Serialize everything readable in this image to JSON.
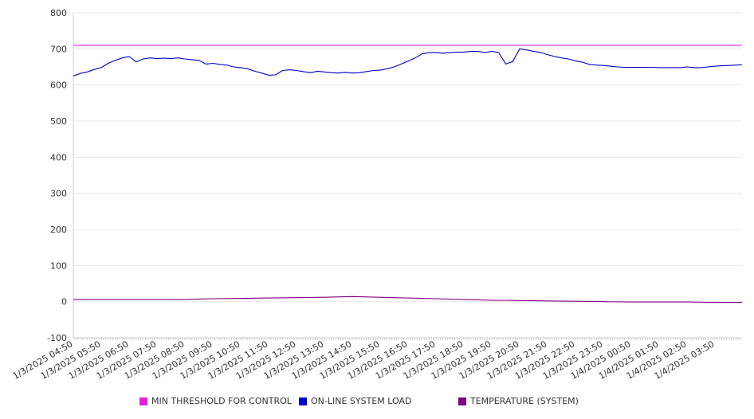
{
  "chart_data": {
    "type": "line",
    "title": "",
    "xlabel": "",
    "ylabel": "",
    "ylim": [
      -100,
      800
    ],
    "yticks": [
      -100,
      0,
      100,
      200,
      300,
      400,
      500,
      600,
      700,
      800
    ],
    "xtick_labels": [
      "1/3/2025 04:50",
      "1/3/2025 05:50",
      "1/3/2025 06:50",
      "1/3/2025 07:50",
      "1/3/2025 08:50",
      "1/3/2025 09:50",
      "1/3/2025 10:50",
      "1/3/2025 11:50",
      "1/3/2025 12:50",
      "1/3/2025 13:50",
      "1/3/2025 14:50",
      "1/3/2025 15:50",
      "1/3/2025 16:50",
      "1/3/2025 17:50",
      "1/3/2025 18:50",
      "1/3/2025 19:50",
      "1/3/2025 20:50",
      "1/3/2025 21:50",
      "1/3/2025 22:50",
      "1/3/2025 23:50",
      "1/4/2025 00:50",
      "1/4/2025 01:50",
      "1/4/2025 02:50",
      "1/4/2025 03:50"
    ],
    "grid": true,
    "legend_position": "bottom",
    "series": [
      {
        "name": "MIN THRESHOLD FOR CONTROL",
        "color": "#e020e0",
        "x": [
          "1/3/2025 04:50",
          "1/4/2025 04:50"
        ],
        "y": [
          710,
          710
        ]
      },
      {
        "name": "ON-LINE SYSTEM LOAD",
        "color": "#0000cc",
        "x": [
          "1/3/2025 04:50",
          "1/3/2025 05:05",
          "1/3/2025 05:20",
          "1/3/2025 05:35",
          "1/3/2025 05:50",
          "1/3/2025 06:05",
          "1/3/2025 06:20",
          "1/3/2025 06:35",
          "1/3/2025 06:50",
          "1/3/2025 07:05",
          "1/3/2025 07:20",
          "1/3/2025 07:35",
          "1/3/2025 07:50",
          "1/3/2025 08:05",
          "1/3/2025 08:20",
          "1/3/2025 08:35",
          "1/3/2025 08:50",
          "1/3/2025 09:05",
          "1/3/2025 09:20",
          "1/3/2025 09:35",
          "1/3/2025 09:50",
          "1/3/2025 10:05",
          "1/3/2025 10:20",
          "1/3/2025 10:35",
          "1/3/2025 10:50",
          "1/3/2025 11:05",
          "1/3/2025 11:20",
          "1/3/2025 11:35",
          "1/3/2025 11:50",
          "1/3/2025 12:05",
          "1/3/2025 12:20",
          "1/3/2025 12:35",
          "1/3/2025 12:50",
          "1/3/2025 13:05",
          "1/3/2025 13:20",
          "1/3/2025 13:35",
          "1/3/2025 13:50",
          "1/3/2025 14:05",
          "1/3/2025 14:20",
          "1/3/2025 14:35",
          "1/3/2025 14:50",
          "1/3/2025 15:05",
          "1/3/2025 15:20",
          "1/3/2025 15:35",
          "1/3/2025 15:50",
          "1/3/2025 16:05",
          "1/3/2025 16:20",
          "1/3/2025 16:35",
          "1/3/2025 16:50",
          "1/3/2025 17:05",
          "1/3/2025 17:20",
          "1/3/2025 17:35",
          "1/3/2025 17:50",
          "1/3/2025 18:05",
          "1/3/2025 18:20",
          "1/3/2025 18:35",
          "1/3/2025 18:50",
          "1/3/2025 19:05",
          "1/3/2025 19:20",
          "1/3/2025 19:35",
          "1/3/2025 19:50",
          "1/3/2025 20:05",
          "1/3/2025 20:20",
          "1/3/2025 20:35",
          "1/3/2025 20:50",
          "1/3/2025 21:05",
          "1/3/2025 21:20",
          "1/3/2025 21:35",
          "1/3/2025 21:50",
          "1/3/2025 22:05",
          "1/3/2025 22:20",
          "1/3/2025 22:35",
          "1/3/2025 22:50",
          "1/3/2025 23:05",
          "1/3/2025 23:20",
          "1/3/2025 23:35",
          "1/3/2025 23:50",
          "1/4/2025 00:05",
          "1/4/2025 00:20",
          "1/4/2025 00:35",
          "1/4/2025 00:50",
          "1/4/2025 01:05",
          "1/4/2025 01:20",
          "1/4/2025 01:35",
          "1/4/2025 01:50",
          "1/4/2025 02:05",
          "1/4/2025 02:20",
          "1/4/2025 02:35",
          "1/4/2025 02:50",
          "1/4/2025 03:05",
          "1/4/2025 03:20",
          "1/4/2025 03:35",
          "1/4/2025 03:50",
          "1/4/2025 04:05",
          "1/4/2025 04:20",
          "1/4/2025 04:35",
          "1/4/2025 04:50"
        ],
        "y": [
          625,
          632,
          636,
          643,
          648,
          660,
          668,
          675,
          679,
          664,
          672,
          675,
          673,
          674,
          673,
          675,
          672,
          670,
          668,
          658,
          660,
          657,
          655,
          650,
          648,
          645,
          638,
          633,
          627,
          628,
          640,
          642,
          640,
          637,
          634,
          638,
          636,
          634,
          633,
          635,
          633,
          634,
          637,
          640,
          641,
          645,
          650,
          658,
          666,
          675,
          686,
          690,
          690,
          688,
          690,
          691,
          691,
          693,
          693,
          690,
          693,
          690,
          658,
          665,
          700,
          697,
          693,
          690,
          684,
          679,
          675,
          672,
          667,
          663,
          657,
          655,
          654,
          652,
          650,
          649,
          649,
          649,
          649,
          649,
          648,
          648,
          648,
          648,
          650,
          648,
          648,
          650,
          652,
          653,
          654,
          655,
          656
        ]
      },
      {
        "name": "TEMPERATURE (SYSTEM)",
        "color": "#800080",
        "x": [
          "1/3/2025 04:50",
          "1/3/2025 06:50",
          "1/3/2025 08:50",
          "1/3/2025 09:50",
          "1/3/2025 10:50",
          "1/3/2025 11:50",
          "1/3/2025 12:50",
          "1/3/2025 13:50",
          "1/3/2025 14:50",
          "1/3/2025 15:50",
          "1/3/2025 16:50",
          "1/3/2025 17:50",
          "1/3/2025 18:50",
          "1/3/2025 19:50",
          "1/3/2025 20:50",
          "1/3/2025 21:50",
          "1/3/2025 22:50",
          "1/3/2025 23:50",
          "1/4/2025 00:50",
          "1/4/2025 01:50",
          "1/4/2025 02:50",
          "1/4/2025 03:50",
          "1/4/2025 04:50"
        ],
        "y": [
          6,
          6,
          6,
          8,
          9,
          10,
          11,
          12,
          14,
          12,
          10,
          8,
          6,
          4,
          3,
          2,
          1,
          0,
          -1,
          -1,
          -1,
          -2,
          -2
        ]
      }
    ]
  },
  "legend": {
    "items": [
      {
        "label": "MIN THRESHOLD FOR CONTROL",
        "color": "#e020e0"
      },
      {
        "label": "ON-LINE SYSTEM LOAD",
        "color": "#0000cc"
      },
      {
        "label": "TEMPERATURE (SYSTEM)",
        "color": "#800080"
      }
    ]
  }
}
